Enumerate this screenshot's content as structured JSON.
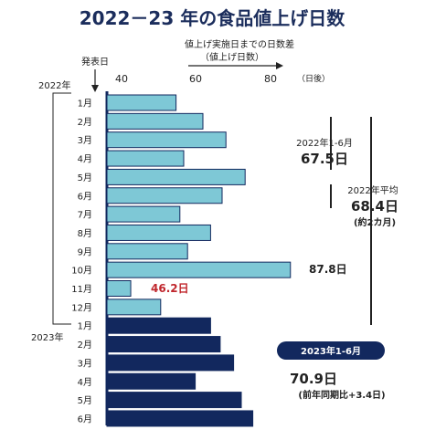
{
  "title": "2022－23 年の食品値上げ日数",
  "x_axis_caption_line1": "値上げ実施日までの日数差",
  "x_axis_caption_line2": "（値上げ日数）",
  "y_axis_caption": "発表日",
  "x_unit": "（日後）",
  "year_2022_label": "2022年",
  "year_2023_label": "2023年",
  "annotations": {
    "h1_2022_label": "2022年1-6月",
    "h1_2022_value": "67.5日",
    "avg_2022_label": "2022年平均",
    "avg_2022_value": "68.4日",
    "avg_2022_note": "(約2カ月)",
    "h1_2023_badge": "2023年1-6月",
    "h1_2023_value": "70.9日",
    "h1_2023_note": "(前年同期比+3.4日)",
    "oct_2022_label": "87.8日",
    "nov_2022_label": "46.2日"
  },
  "colors": {
    "bar_2022": "#7ec8d6",
    "bar_2023": "#12285e",
    "title": "#1b2d5c",
    "highlight_red": "#c0272d",
    "axis": "#12285e"
  },
  "chart_data": {
    "type": "bar",
    "orientation": "horizontal",
    "title": "2022－23 年の食品値上げ日数",
    "xlabel": "値上げ実施日までの日数差（値上げ日数）",
    "ylabel": "発表日",
    "x_ticks": [
      40,
      60,
      80
    ],
    "x_unit": "（日後）",
    "xlim": [
      40,
      88
    ],
    "grid": false,
    "series": [
      {
        "name": "2022年",
        "categories": [
          "1月",
          "2月",
          "3月",
          "4月",
          "5月",
          "6月",
          "7月",
          "8月",
          "9月",
          "10月",
          "11月",
          "12月"
        ],
        "values": [
          58,
          65,
          71,
          60,
          76,
          70,
          59,
          67,
          61,
          87.8,
          46.2,
          54
        ]
      },
      {
        "name": "2023年",
        "categories": [
          "1月",
          "2月",
          "3月",
          "4月",
          "5月",
          "6月"
        ],
        "values": [
          67,
          69.5,
          73,
          63,
          75,
          78
        ]
      }
    ],
    "data_labels": [
      {
        "year": "2022年",
        "month": "10月",
        "value": 87.8,
        "text": "87.8日"
      },
      {
        "year": "2022年",
        "month": "11月",
        "value": 46.2,
        "text": "46.2日"
      }
    ]
  }
}
